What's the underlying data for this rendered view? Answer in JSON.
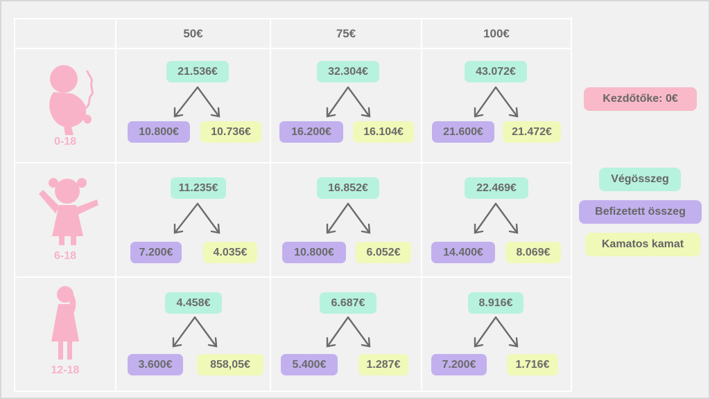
{
  "columns": [
    "50€",
    "75€",
    "100€"
  ],
  "rows": [
    {
      "age": "0-18",
      "icon": "baby-icon",
      "cells": [
        {
          "total": "21.536€",
          "paid": "10.800€",
          "interest": "10.736€"
        },
        {
          "total": "32.304€",
          "paid": "16.200€",
          "interest": "16.104€"
        },
        {
          "total": "43.072€",
          "paid": "21.600€",
          "interest": "21.472€"
        }
      ]
    },
    {
      "age": "6-18",
      "icon": "child-icon",
      "cells": [
        {
          "total": "11.235€",
          "paid": "7.200€",
          "interest": "4.035€"
        },
        {
          "total": "16.852€",
          "paid": "10.800€",
          "interest": "6.052€"
        },
        {
          "total": "22.469€",
          "paid": "14.400€",
          "interest": "8.069€"
        }
      ]
    },
    {
      "age": "12-18",
      "icon": "girl-icon",
      "cells": [
        {
          "total": "4.458€",
          "paid": "3.600€",
          "interest": "858,05€"
        },
        {
          "total": "6.687€",
          "paid": "5.400€",
          "interest": "1.287€"
        },
        {
          "total": "8.916€",
          "paid": "7.200€",
          "interest": "1.716€"
        }
      ]
    }
  ],
  "legend": {
    "initial": "Kezdőtőke: 0€",
    "total": "Végösszeg",
    "paid": "Befizetett összeg",
    "interest": "Kamatos kamat"
  },
  "colors": {
    "total": "#b7f2de",
    "paid": "#c2b0ee",
    "interest": "#f0f9b7",
    "initial": "#f9b9c8",
    "icon": "#f9b3c8"
  }
}
